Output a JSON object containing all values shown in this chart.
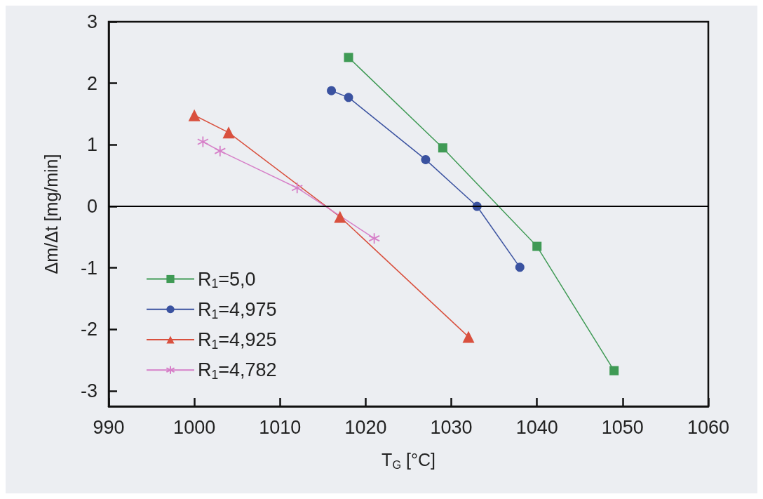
{
  "chart_data": {
    "type": "line",
    "xlabel": "T$_{G}$ [°C]",
    "ylabel": "Δm/Δt [mg/min]",
    "xlim": [
      990,
      1060
    ],
    "xticks": [
      990,
      1000,
      1010,
      1020,
      1030,
      1040,
      1050,
      1060
    ],
    "ylim": [
      -3.25,
      3
    ],
    "yticks": [
      -3,
      -2,
      -1,
      0,
      1,
      2,
      3
    ],
    "grid": false,
    "legend": "bottom left",
    "ref_lines": [
      {
        "axis": "y",
        "value": 0,
        "color": "#000000"
      }
    ],
    "series": [
      {
        "name": "R$_{1}$=5,0",
        "color": "#3f9a55",
        "marker": "square",
        "x": [
          1018,
          1029,
          1040,
          1049
        ],
        "values": [
          2.42,
          0.95,
          -0.65,
          -2.67
        ]
      },
      {
        "name": "R$_{1}$=4,975",
        "color": "#3a52a0",
        "marker": "circle",
        "x": [
          1016,
          1018,
          1027,
          1033,
          1038
        ],
        "values": [
          1.88,
          1.77,
          0.76,
          0.0,
          -0.99
        ]
      },
      {
        "name": "R$_{1}$=4,925",
        "color": "#d9503e",
        "marker": "triangle",
        "x": [
          1000,
          1004,
          1017,
          1032
        ],
        "values": [
          1.48,
          1.2,
          -0.17,
          -2.12
        ]
      },
      {
        "name": "R$_{1}$=4,782",
        "color": "#d67fc8",
        "marker": "cross",
        "x": [
          1001,
          1003,
          1012,
          1021
        ],
        "values": [
          1.05,
          0.9,
          0.3,
          -0.52
        ]
      }
    ]
  }
}
